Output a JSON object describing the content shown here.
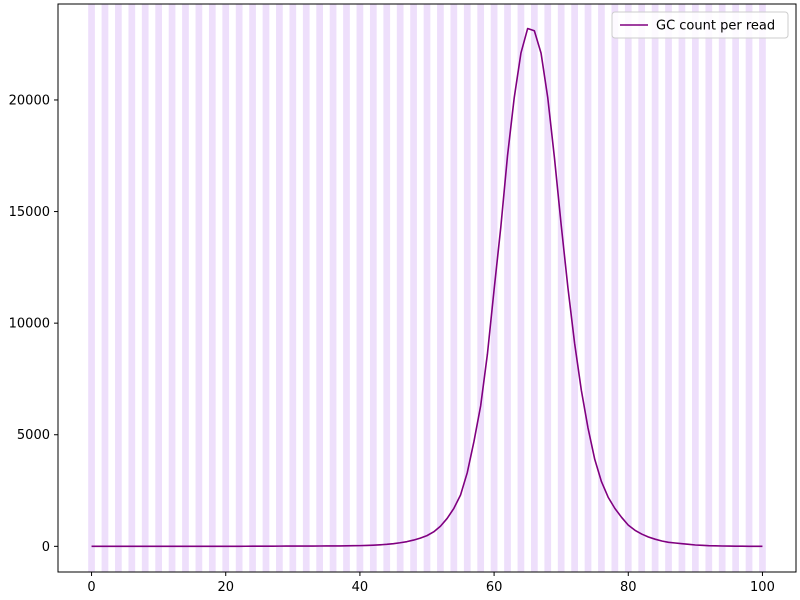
{
  "chart_data": {
    "type": "line",
    "title": "",
    "xlabel": "",
    "ylabel": "",
    "xlim": [
      -5,
      105
    ],
    "ylim": [
      -1150,
      24300
    ],
    "xticks": [
      0,
      20,
      40,
      60,
      80,
      100
    ],
    "yticks": [
      0,
      5000,
      10000,
      15000,
      20000
    ],
    "grid": false,
    "legend_position": "top-right",
    "background_bands": {
      "color": "#EEDFFB",
      "start": 0,
      "end": 100,
      "step": 1
    },
    "series": [
      {
        "name": "GC count per read",
        "color": "#800080",
        "x": [
          0,
          1,
          2,
          3,
          4,
          5,
          6,
          7,
          8,
          9,
          10,
          11,
          12,
          13,
          14,
          15,
          16,
          17,
          18,
          19,
          20,
          21,
          22,
          23,
          24,
          25,
          26,
          27,
          28,
          29,
          30,
          31,
          32,
          33,
          34,
          35,
          36,
          37,
          38,
          39,
          40,
          41,
          42,
          43,
          44,
          45,
          46,
          47,
          48,
          49,
          50,
          51,
          52,
          53,
          54,
          55,
          56,
          57,
          58,
          59,
          60,
          61,
          62,
          63,
          64,
          65,
          66,
          67,
          68,
          69,
          70,
          71,
          72,
          73,
          74,
          75,
          76,
          77,
          78,
          79,
          80,
          81,
          82,
          83,
          84,
          85,
          86,
          87,
          88,
          89,
          90,
          91,
          92,
          93,
          94,
          95,
          96,
          97,
          98,
          99,
          100
        ],
        "y": [
          0,
          0,
          0,
          0,
          0,
          0,
          0,
          0,
          0,
          0,
          0,
          0,
          0,
          0,
          0,
          0,
          0,
          0,
          0,
          0,
          2,
          3,
          3,
          4,
          5,
          6,
          7,
          8,
          9,
          10,
          11,
          12,
          13,
          14,
          15,
          16,
          18,
          20,
          23,
          27,
          32,
          40,
          52,
          68,
          90,
          120,
          160,
          210,
          280,
          370,
          480,
          650,
          900,
          1250,
          1700,
          2300,
          3300,
          4700,
          6300,
          8600,
          11500,
          14300,
          17500,
          20100,
          22100,
          23200,
          23100,
          22100,
          20100,
          17400,
          14400,
          11600,
          9100,
          7000,
          5300,
          3900,
          2900,
          2200,
          1700,
          1300,
          950,
          720,
          550,
          420,
          320,
          240,
          180,
          150,
          120,
          90,
          60,
          45,
          30,
          22,
          15,
          10,
          7,
          5,
          3,
          2,
          1
        ]
      }
    ]
  }
}
